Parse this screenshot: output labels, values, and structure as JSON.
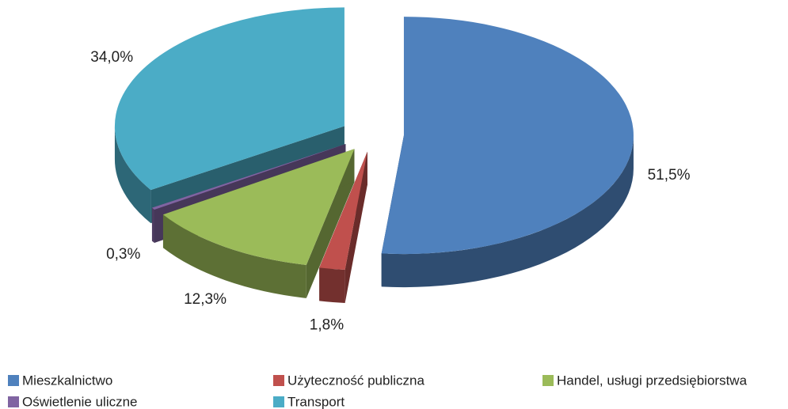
{
  "chart_data": {
    "type": "pie",
    "categories": [
      "Mieszkalnictwo",
      "Użyteczność publiczna",
      "Handel, usługi przedsiębiorstwa",
      "Oświetlenie uliczne",
      "Transport"
    ],
    "values": [
      51.5,
      1.8,
      12.3,
      0.3,
      34.0
    ],
    "value_labels": [
      "51,5%",
      "1,8%",
      "12,3%",
      "0,3%",
      "34,0%"
    ],
    "colors": [
      "#4f81bd",
      "#c0504d",
      "#9bbb59",
      "#8064a2",
      "#4bacc6"
    ],
    "legend": "bottom"
  }
}
